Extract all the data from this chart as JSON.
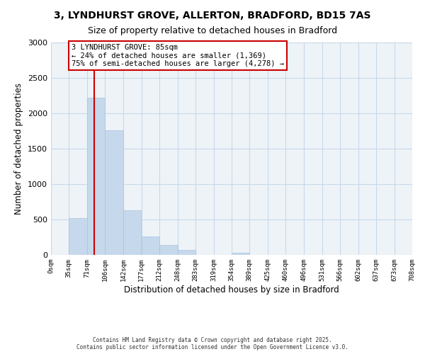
{
  "title": "3, LYNDHURST GROVE, ALLERTON, BRADFORD, BD15 7AS",
  "subtitle": "Size of property relative to detached houses in Bradford",
  "xlabel": "Distribution of detached houses by size in Bradford",
  "ylabel": "Number of detached properties",
  "bar_color": "#c5d8ec",
  "bar_edge_color": "#adc4db",
  "grid_color": "#c8d8e8",
  "background_color": "#eef3f8",
  "bin_edges": [
    0,
    35,
    71,
    106,
    142,
    177,
    212,
    248,
    283,
    319,
    354,
    389,
    425,
    460,
    496,
    531,
    566,
    602,
    637,
    673,
    708
  ],
  "bin_labels": [
    "0sqm",
    "35sqm",
    "71sqm",
    "106sqm",
    "142sqm",
    "177sqm",
    "212sqm",
    "248sqm",
    "283sqm",
    "319sqm",
    "354sqm",
    "389sqm",
    "425sqm",
    "460sqm",
    "496sqm",
    "531sqm",
    "566sqm",
    "602sqm",
    "637sqm",
    "673sqm",
    "708sqm"
  ],
  "bar_heights": [
    0,
    520,
    2220,
    1760,
    630,
    260,
    140,
    70,
    0,
    0,
    30,
    0,
    0,
    0,
    0,
    0,
    0,
    0,
    0,
    0
  ],
  "ylim": [
    0,
    3000
  ],
  "yticks": [
    0,
    500,
    1000,
    1500,
    2000,
    2500,
    3000
  ],
  "property_line_x": 85,
  "property_line_color": "#cc0000",
  "annotation_title": "3 LYNDHURST GROVE: 85sqm",
  "annotation_line1": "← 24% of detached houses are smaller (1,369)",
  "annotation_line2": "75% of semi-detached houses are larger (4,278) →",
  "annotation_box_color": "#ffffff",
  "annotation_box_edge_color": "#cc0000",
  "footer_line1": "Contains HM Land Registry data © Crown copyright and database right 2025.",
  "footer_line2": "Contains public sector information licensed under the Open Government Licence v3.0."
}
